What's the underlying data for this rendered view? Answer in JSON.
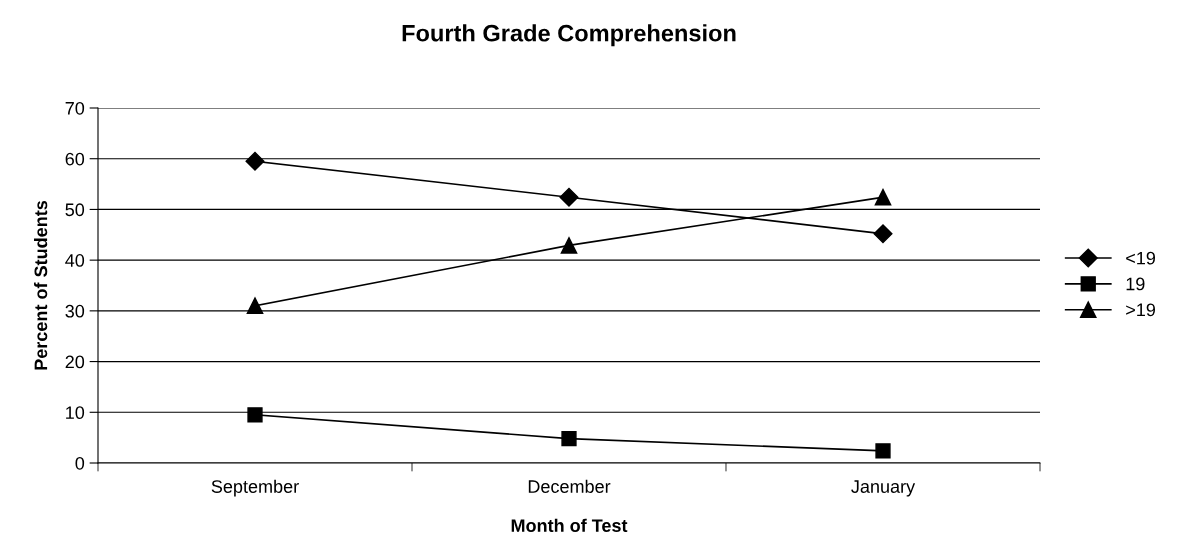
{
  "chart_data": {
    "type": "line",
    "title": "Fourth Grade Comprehension",
    "xlabel": "Month of Test",
    "ylabel": "Percent of Students",
    "categories": [
      "September",
      "December",
      "January"
    ],
    "series": [
      {
        "name": "<19",
        "color": "#000000",
        "marker": "diamond",
        "values": [
          59.5,
          52.4,
          45.2
        ]
      },
      {
        "name": "19",
        "color": "#000000",
        "marker": "square",
        "values": [
          9.5,
          4.8,
          2.4
        ]
      },
      {
        "name": ">19",
        "color": "#000000",
        "marker": "triangle",
        "values": [
          31,
          42.9,
          52.4
        ]
      }
    ],
    "ylim": [
      0,
      70
    ],
    "yticks": [
      0,
      10,
      20,
      30,
      40,
      50,
      60,
      70
    ],
    "grid": "y",
    "legend": "right",
    "line_style": "solid"
  }
}
